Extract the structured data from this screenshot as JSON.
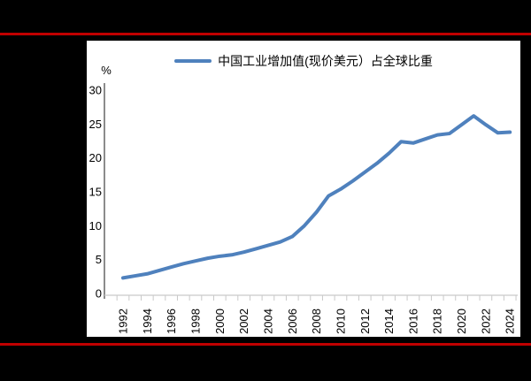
{
  "colors": {
    "background": "#000000",
    "panel": "#ffffff",
    "divider": "#c00000",
    "line": "#4F81BD",
    "axis": "#404040",
    "tick": "#c9c9c9",
    "text": "#000000"
  },
  "chart_data": {
    "type": "line",
    "title": "",
    "unit_label": "%",
    "legend_position": "top",
    "grid": false,
    "ylim": [
      0,
      30
    ],
    "yticks": [
      0,
      5,
      10,
      15,
      20,
      25,
      30
    ],
    "xticks": [
      1992,
      1994,
      1996,
      1998,
      2000,
      2002,
      2004,
      2006,
      2008,
      2010,
      2012,
      2014,
      2016,
      2018,
      2020,
      2022,
      2024
    ],
    "x": [
      1992,
      1993,
      1994,
      1995,
      1996,
      1997,
      1998,
      1999,
      2000,
      2001,
      2002,
      2003,
      2004,
      2005,
      2006,
      2007,
      2008,
      2009,
      2010,
      2011,
      2012,
      2013,
      2014,
      2015,
      2016,
      2017,
      2018,
      2019,
      2020,
      2021,
      2022,
      2023,
      2024
    ],
    "series": [
      {
        "name": "中国工业增加值(现价美元）占全球比重",
        "color": "#4F81BD",
        "values": [
          2.3,
          2.6,
          2.9,
          3.4,
          3.9,
          4.4,
          4.8,
          5.2,
          5.5,
          5.7,
          6.1,
          6.6,
          7.1,
          7.6,
          8.4,
          10.0,
          12.0,
          14.4,
          15.4,
          16.6,
          17.9,
          19.2,
          20.7,
          22.4,
          22.2,
          22.8,
          23.4,
          23.6,
          24.9,
          26.2,
          24.9,
          23.7,
          23.8
        ]
      }
    ]
  }
}
